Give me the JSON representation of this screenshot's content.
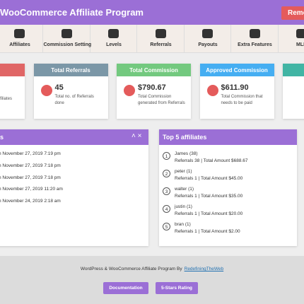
{
  "header": {
    "title": "WooCommerce Affiliate Program",
    "button": "Remove"
  },
  "tabs": [
    "Affiliates",
    "Commission Setting",
    "Levels",
    "Referrals",
    "Payouts",
    "Extra Features",
    "MLM"
  ],
  "cards": [
    {
      "title": "es",
      "desc": "filiates"
    },
    {
      "title": "Total Referrals",
      "value": "45",
      "desc": "Total no. of Referrals done"
    },
    {
      "title": "Total Commission",
      "value": "$790.67",
      "desc": "Total Commission generated from Referrals"
    },
    {
      "title": "Approved Commission",
      "value": "$611.90",
      "desc": "Total Commission that needs to be paid"
    },
    {
      "title": "Pen"
    }
  ],
  "recent": {
    "title": "s",
    "rows": [
      "n November 27, 2019 7:19 pm",
      "n November 27, 2019 7:18 pm",
      "n November 27, 2019 7:18 pm",
      "n November 27, 2019 11:20 am",
      "n November 24, 2019 2:18 am"
    ]
  },
  "top": {
    "title": "Top 5 affiliates",
    "items": [
      {
        "rank": 1,
        "name": "James (38)",
        "detail": "Referrals 38 | Total Amount $688.67"
      },
      {
        "rank": 2,
        "name": "peter (1)",
        "detail": "Referrals 1 | Total Amount $45.00"
      },
      {
        "rank": 3,
        "name": "walter (1)",
        "detail": "Referrals 1 | Total Amount $35.00"
      },
      {
        "rank": 4,
        "name": "justin (1)",
        "detail": "Referrals 1 | Total Amount $20.00"
      },
      {
        "rank": 5,
        "name": "bran (1)",
        "detail": "Referrals 1 | Total Amount $2.00"
      }
    ]
  },
  "footer": {
    "text": "WordPress & WooCommerce Affiliate Program By",
    "link": "RedefiningTheWeb",
    "buttons": [
      "Documentation",
      "5-Stars Rating"
    ]
  }
}
